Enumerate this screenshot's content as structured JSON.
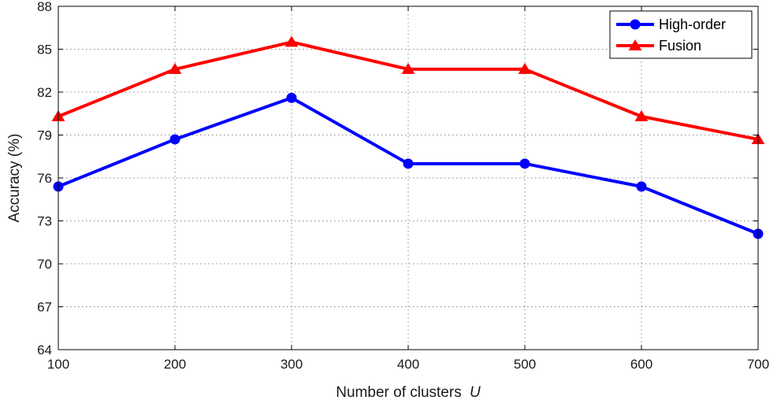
{
  "chart_data": {
    "type": "line",
    "title": "",
    "xlabel": "Number of clusters",
    "xlabel_var": "U",
    "ylabel": "Accuracy (%)",
    "x": [
      100,
      200,
      300,
      400,
      500,
      600,
      700
    ],
    "xlim": [
      100,
      700
    ],
    "ylim": [
      64,
      88
    ],
    "yticks": [
      64,
      67,
      70,
      73,
      76,
      79,
      82,
      85,
      88
    ],
    "grid": true,
    "legend_position": "top-right",
    "series": [
      {
        "name": "High-order",
        "color": "#0000ff",
        "marker": "circle",
        "values": [
          75.4,
          78.7,
          81.6,
          77.0,
          77.0,
          75.4,
          72.1
        ]
      },
      {
        "name": "Fusion",
        "color": "#ff0000",
        "marker": "triangle",
        "values": [
          80.3,
          83.6,
          85.5,
          83.6,
          83.6,
          80.3,
          78.7
        ]
      }
    ]
  }
}
